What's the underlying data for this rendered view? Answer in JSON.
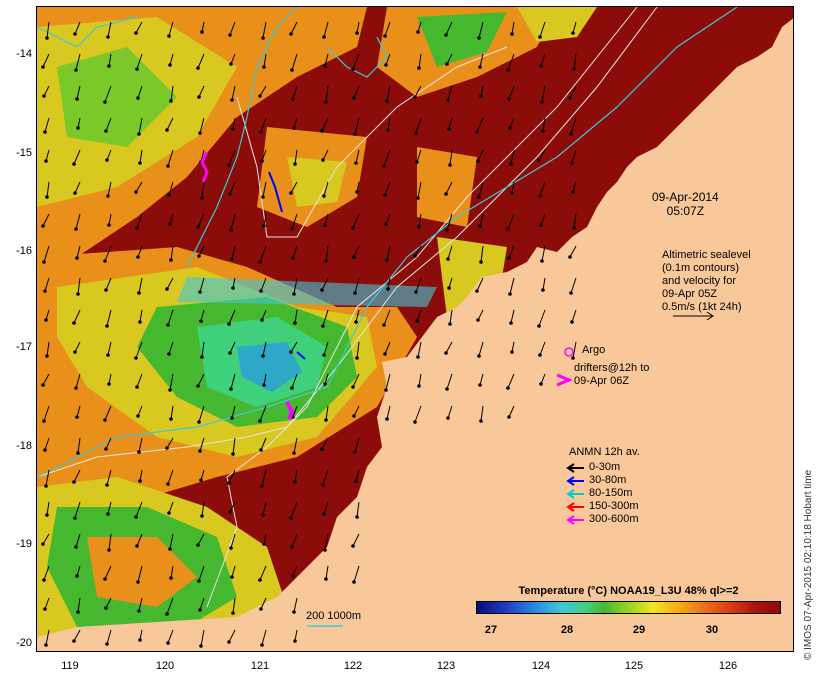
{
  "y_ticks": [
    "-14",
    "-15",
    "-16",
    "-17",
    "-18",
    "-19",
    "-20"
  ],
  "x_ticks": [
    "119",
    "120",
    "121",
    "122",
    "123",
    "124",
    "125",
    "126"
  ],
  "datetime": {
    "date": "09-Apr-2014",
    "time": "05:07Z"
  },
  "altimetry_note": [
    "Altimetric sealevel",
    "(0.1m contours)",
    "and velocity for",
    "09-Apr 05Z",
    "0.5m/s (1kt 24h)"
  ],
  "argo_label": "Argo",
  "drifters_label": [
    "drifters@12h to",
    "09-Apr 06Z"
  ],
  "anmn": {
    "title": "ANMN 12h av.",
    "rows": [
      {
        "label": "0-30m",
        "color": "#000000"
      },
      {
        "label": "30-80m",
        "color": "#0000ff"
      },
      {
        "label": "80-150m",
        "color": "#00cccc"
      },
      {
        "label": "150-300m",
        "color": "#ff0000"
      },
      {
        "label": "300-600m",
        "color": "#ff00ff"
      }
    ]
  },
  "depth_scale": "200  1000m",
  "colorbar": {
    "title": "Temperature (°C) NOAA19_L3U 48% ql>=2",
    "ticks": [
      "27",
      "28",
      "29",
      "30"
    ]
  },
  "credit": "© IMOS 07-Apr-2015 02:10:18 Hobart time",
  "colors": {
    "land": "#f9c89a",
    "warm_sst": "#8c0c0a",
    "contour": "#e6e6e6",
    "isobath": "#40c8d8",
    "argo": "#ff00ff"
  }
}
